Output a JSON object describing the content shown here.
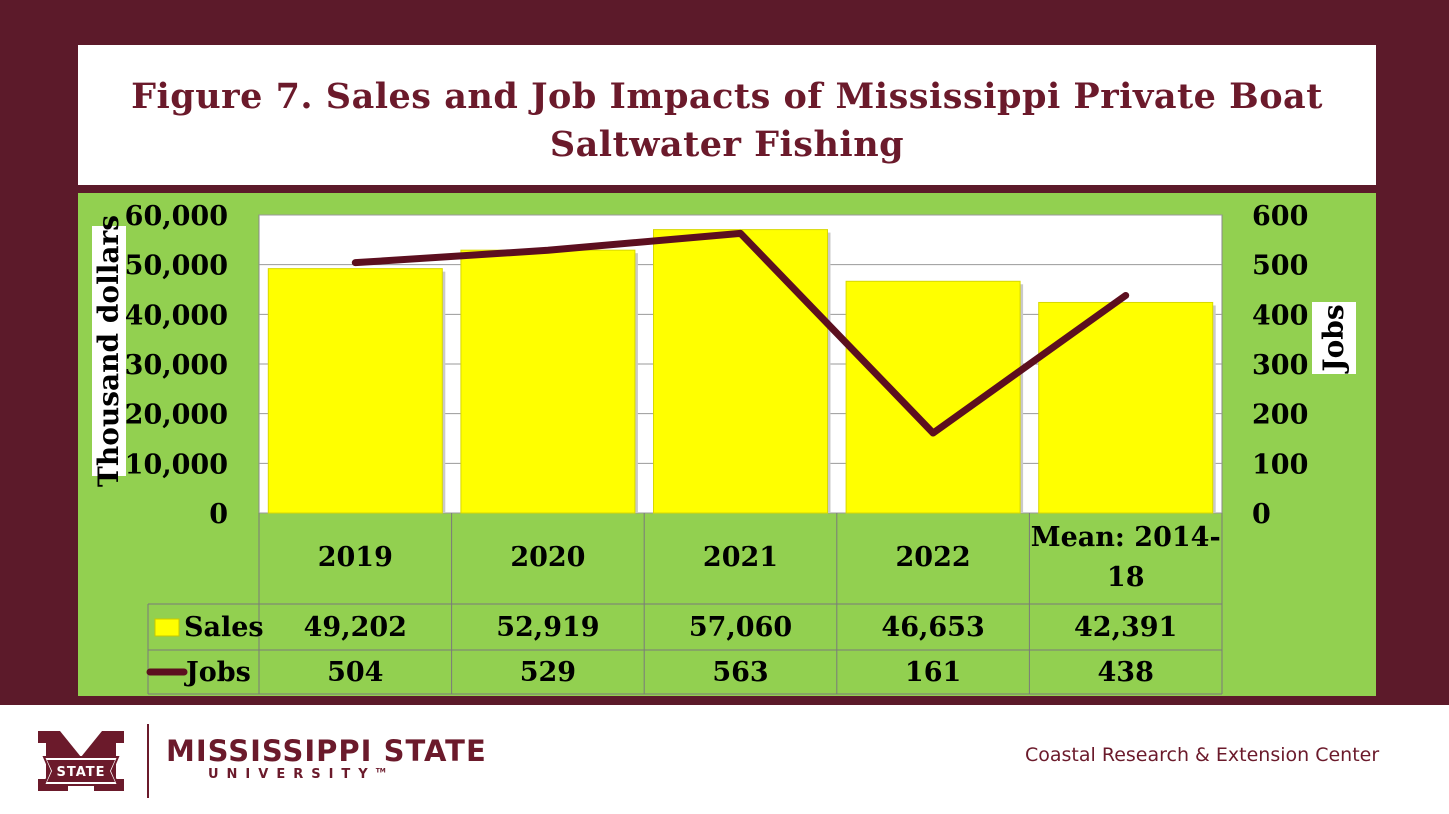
{
  "title": "Figure 7. Sales and Job Impacts of Mississippi Private Boat Saltwater Fishing",
  "title_line1": "Figure 7. Sales and Job Impacts of Mississippi Private Boat",
  "title_line2": "Saltwater Fishing",
  "footer": {
    "logo_text": "STATE",
    "university_name": "MISSISSIPPI STATE",
    "university_word": "UNIVERSITY",
    "tm": "TM",
    "center_name": "Coastal Research & Extension Center"
  },
  "colors": {
    "frame": "#5c1a2a",
    "plot_green": "#92d050",
    "bar_yellow": "#ffff00",
    "line_maroon": "#5c0f1f"
  },
  "chart_data": {
    "type": "bar",
    "categories": [
      "2019",
      "2020",
      "2021",
      "2022",
      "Mean: 2014-18"
    ],
    "category_lines": [
      [
        "2019"
      ],
      [
        "2020"
      ],
      [
        "2021"
      ],
      [
        "2022"
      ],
      [
        "Mean: 2014-",
        "18"
      ]
    ],
    "series": [
      {
        "name": "Sales",
        "type": "bar",
        "axis": "left",
        "values": [
          49202,
          52919,
          57060,
          46653,
          42391
        ],
        "labels": [
          "49,202",
          "52,919",
          "57,060",
          "46,653",
          "42,391"
        ]
      },
      {
        "name": "Jobs",
        "type": "line",
        "axis": "right",
        "values": [
          504,
          529,
          563,
          161,
          438
        ],
        "labels": [
          "504",
          "529",
          "563",
          "161",
          "438"
        ]
      }
    ],
    "ylabel": "Thousand dollars",
    "y2label": "Jobs",
    "ylim": [
      0,
      60000
    ],
    "y2lim": [
      0,
      600
    ],
    "yticks": [
      "0",
      "10,000",
      "20,000",
      "30,000",
      "40,000",
      "50,000",
      "60,000"
    ],
    "y2ticks": [
      "0",
      "100",
      "200",
      "300",
      "400",
      "500",
      "600"
    ],
    "grid": true,
    "data_table": true
  }
}
